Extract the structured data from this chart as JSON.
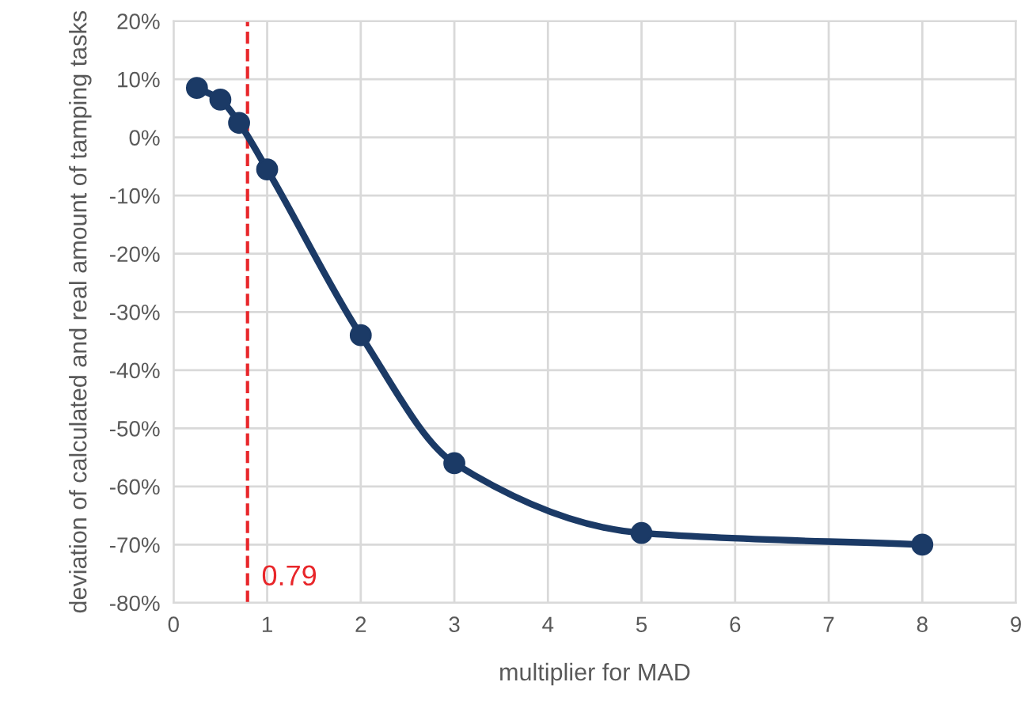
{
  "chart_data": {
    "type": "line",
    "xlabel": "multiplier for MAD",
    "ylabel": "deviation of calculated and real amount of tamping tasks",
    "x": [
      0.25,
      0.5,
      0.7,
      1,
      2,
      3,
      5,
      8
    ],
    "series": [
      {
        "color": "#1b3a66",
        "values": [
          8.5,
          6.5,
          2.5,
          -5.5,
          -34,
          -56,
          -68,
          -70
        ]
      }
    ],
    "xlim": [
      0,
      9
    ],
    "xticks": [
      0,
      1,
      2,
      3,
      4,
      5,
      6,
      7,
      8,
      9
    ],
    "ylim": [
      -80,
      20
    ],
    "yticks": [
      {
        "value": -80,
        "label": "-80%"
      },
      {
        "value": -70,
        "label": "-70%"
      },
      {
        "value": -60,
        "label": "-60%"
      },
      {
        "value": -50,
        "label": "-50%"
      },
      {
        "value": -40,
        "label": "-40%"
      },
      {
        "value": -30,
        "label": "-30%"
      },
      {
        "value": -20,
        "label": "-20%"
      },
      {
        "value": -10,
        "label": "-10%"
      },
      {
        "value": 0,
        "label": "0%"
      },
      {
        "value": 10,
        "label": "10%"
      },
      {
        "value": 20,
        "label": "20%"
      }
    ],
    "grid": true,
    "marker": "circle",
    "line_style": "solid",
    "ref_lines": [
      {
        "axis": "x",
        "value": 0.79,
        "label": "0.79",
        "color": "#e8262a",
        "line_style": "dashed"
      }
    ]
  }
}
